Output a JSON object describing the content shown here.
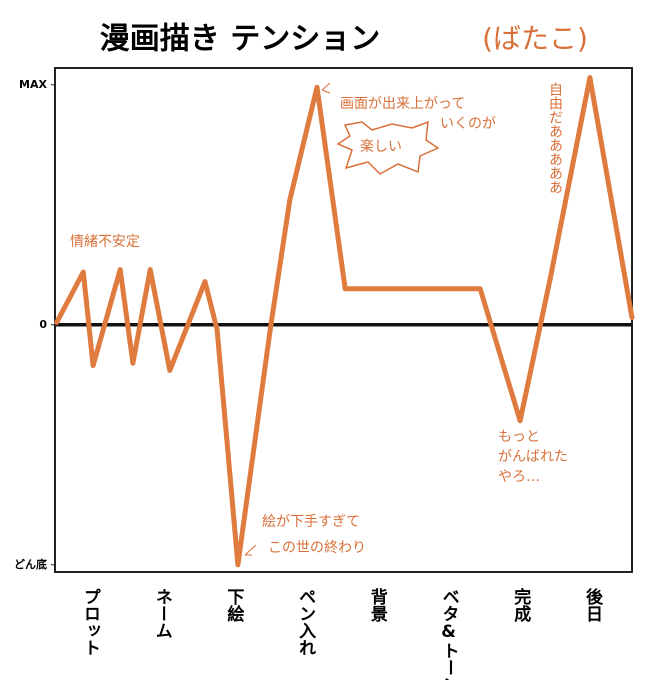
{
  "chart_data": {
    "type": "line",
    "title": "漫画描き テンション",
    "subtitle": "(ばたこ)",
    "x": [
      0.3,
      4.9,
      6.6,
      11.3,
      13.5,
      16.5,
      19.9,
      26,
      28.1,
      31.7,
      37.3,
      40.7,
      45.4,
      50.3,
      59.8,
      73.7,
      80.6,
      85.8,
      92.7,
      100
    ],
    "values": [
      1,
      22,
      -17,
      23,
      -16,
      23,
      -19,
      18,
      -2,
      -100,
      -2,
      52,
      99,
      15,
      15,
      15,
      -40,
      19,
      103,
      3
    ],
    "color": "#e07b3f",
    "xlim": [
      0,
      100
    ],
    "ylim": [
      -103,
      107
    ],
    "yticks": [
      {
        "value": 100,
        "label": "MAX"
      },
      0,
      {
        "value": -100,
        "label": "どん底"
      }
    ],
    "zero_line": true,
    "categories": [
      "プロット",
      "ネーム",
      "下絵",
      "ペン入れ",
      "背景",
      "ベタ&トーン",
      "完成",
      "後日"
    ],
    "annotations": [
      "情緒不安定",
      "画面が出来上がって",
      "いくのが",
      "楽しい",
      "絵が下手すぎて",
      "この世の終わり",
      "もっと",
      "がんばれた",
      "やろ…",
      "自由だあああああ"
    ]
  }
}
